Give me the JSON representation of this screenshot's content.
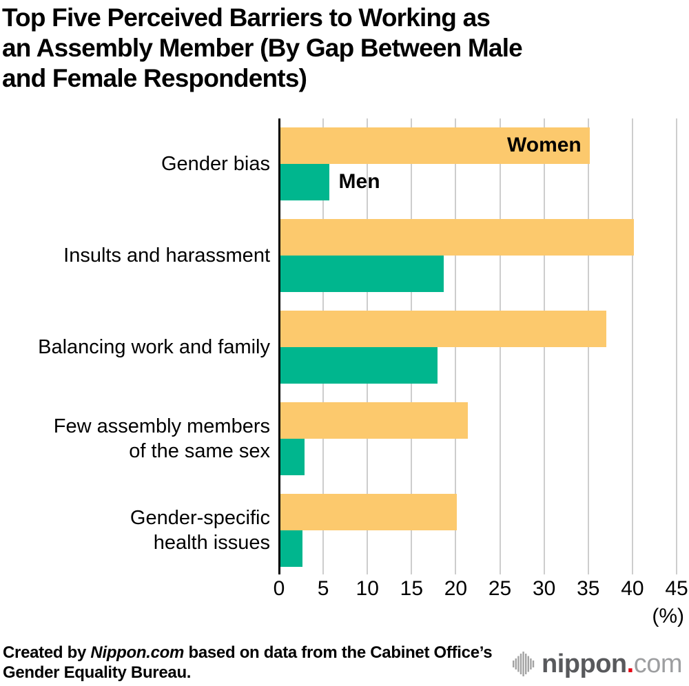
{
  "title_lines": [
    "Top Five Perceived Barriers to Working as",
    "an Assembly Member (By Gap Between Male",
    "and Female Respondents)"
  ],
  "chart_data": {
    "type": "bar",
    "orientation": "horizontal",
    "title": "Top Five Perceived Barriers to Working as an Assembly Member (By Gap Between Male and Female Respondents)",
    "categories": [
      "Gender bias",
      "Insults and harassment",
      "Balancing work and family",
      "Few assembly members of the same sex",
      "Gender-specific health issues"
    ],
    "series": [
      {
        "name": "Women",
        "color": "#FCC96D",
        "values": [
          35.0,
          40.0,
          36.9,
          21.2,
          20.0
        ]
      },
      {
        "name": "Men",
        "color": "#00B68E",
        "values": [
          5.5,
          18.5,
          17.8,
          2.7,
          2.5
        ]
      }
    ],
    "x_ticks": [
      0,
      5,
      10,
      15,
      20,
      25,
      30,
      35,
      40,
      45
    ],
    "xlim": [
      0,
      45
    ],
    "x_unit_label": "(%)",
    "grid": "vertical",
    "legend": "labels next to first bar group"
  },
  "category_lines": [
    [
      "Gender bias"
    ],
    [
      "Insults and harassment"
    ],
    [
      "Balancing work and family"
    ],
    [
      "Few assembly members",
      "of the same sex"
    ],
    [
      "Gender-specific",
      "health issues"
    ]
  ],
  "footer": {
    "line1_prefix": "Created by ",
    "line1_brand": "Nippon.com",
    "line1_suffix": " based on data from the Cabinet Office’s",
    "line2": "Gender Equality Bureau."
  },
  "logo": {
    "bold": "nippon",
    "dot": ".",
    "light": "com"
  },
  "colors": {
    "women": "#FCC96D",
    "men": "#00B68E",
    "grid": "#CDCDCD",
    "axis": "#000000",
    "logo_dark": "#58595C",
    "logo_light": "#9D9EA0",
    "logo_dot": "#E60012",
    "logo_icon": "#A3A3A3"
  }
}
